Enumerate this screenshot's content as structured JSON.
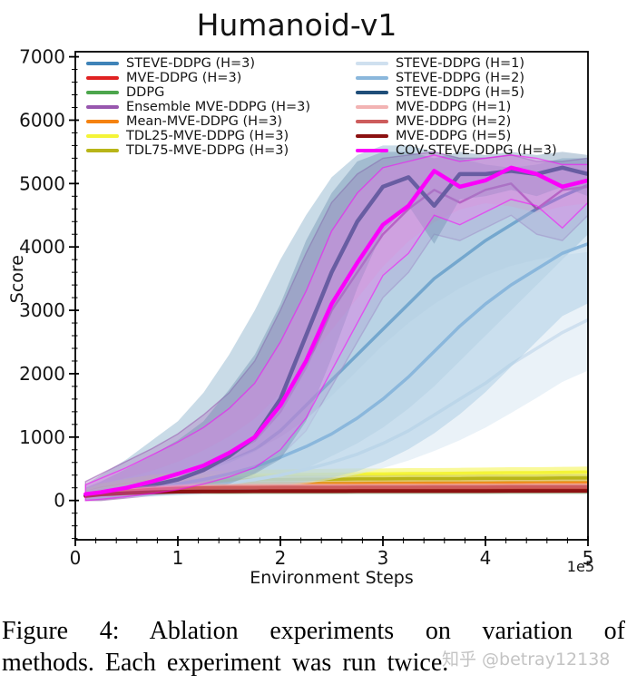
{
  "caption": {
    "line1": "Figure 4:  Ablation experiments on variation of",
    "line2": "methods. Each experiment was run twice.",
    "watermark": "知乎 @betray12138"
  },
  "legend": {
    "columns": [
      [
        {
          "label": "STEVE-DDPG (H=3)",
          "color": "#3f83b8"
        },
        {
          "label": "MVE-DDPG (H=3)",
          "color": "#e02222"
        },
        {
          "label": "DDPG",
          "color": "#4ca64c"
        },
        {
          "label": "Ensemble MVE-DDPG (H=3)",
          "color": "#9857ae"
        },
        {
          "label": "Mean-MVE-DDPG (H=3)",
          "color": "#f5820f"
        },
        {
          "label": "TDL25-MVE-DDPG (H=3)",
          "color": "#f4f438"
        },
        {
          "label": "TDL75-MVE-DDPG (H=3)",
          "color": "#b8b518"
        }
      ],
      [
        {
          "label": "STEVE-DDPG (H=1)",
          "color": "#cfe0ef"
        },
        {
          "label": "STEVE-DDPG (H=2)",
          "color": "#8ab7dc"
        },
        {
          "label": "STEVE-DDPG (H=5)",
          "color": "#1f4e79"
        },
        {
          "label": "MVE-DDPG (H=1)",
          "color": "#f2b3b3"
        },
        {
          "label": "MVE-DDPG (H=2)",
          "color": "#cd5c5c"
        },
        {
          "label": "MVE-DDPG (H=5)",
          "color": "#8c1111"
        },
        {
          "label": "COV-STEVE-DDPG (H=3)",
          "color": "#fb00fb"
        }
      ]
    ]
  },
  "chart_data": {
    "type": "line",
    "title": "Humanoid-v1",
    "xlabel": "Environment Steps",
    "ylabel": "Score",
    "x_offset_label": "1e5",
    "xlim": [
      0,
      5
    ],
    "ylim": [
      -620,
      7080
    ],
    "xticks": [
      0,
      1,
      2,
      3,
      4,
      5
    ],
    "xtick_labels": [
      "0",
      "1",
      "2",
      "3",
      "4",
      "5"
    ],
    "yticks": [
      0,
      1000,
      2000,
      3000,
      4000,
      5000,
      6000,
      7000
    ],
    "ytick_labels": [
      "0",
      "1000",
      "2000",
      "3000",
      "4000",
      "5000",
      "6000",
      "7000"
    ],
    "x_minor_step": 0.2,
    "y_minor_step": 200,
    "grid": false,
    "legend_position": "upper-left-two-columns",
    "x": [
      0.1,
      0.25,
      0.5,
      0.75,
      1.0,
      1.25,
      1.5,
      1.75,
      2.0,
      2.25,
      2.5,
      2.75,
      3.0,
      3.25,
      3.5,
      3.75,
      4.0,
      4.25,
      4.5,
      4.75,
      5.0
    ],
    "series": [
      {
        "id": "steve_h3",
        "name": "STEVE-DDPG (H=3)",
        "color": "#3f83b8",
        "lw": 3.5,
        "band_color": "#93b7cf",
        "band_opacity": 0.5,
        "y": [
          90,
          120,
          180,
          260,
          360,
          480,
          620,
          800,
          1100,
          1500,
          1900,
          2300,
          2700,
          3100,
          3500,
          3800,
          4100,
          4350,
          4600,
          4800,
          4975
        ],
        "band_upper": [
          250,
          400,
          650,
          950,
          1250,
          1700,
          2300,
          3000,
          3800,
          4500,
          5100,
          5450,
          5600,
          5600,
          5500,
          5400,
          5300,
          5250,
          5300,
          5400,
          5400
        ],
        "band_lower": [
          0,
          10,
          50,
          80,
          110,
          150,
          200,
          280,
          380,
          500,
          700,
          900,
          1150,
          1450,
          1800,
          2200,
          2600,
          3000,
          3400,
          3800,
          4200
        ]
      },
      {
        "id": "mve_h3",
        "name": "MVE-DDPG (H=3)",
        "color": "#e02222",
        "lw": 4,
        "band_color": "#e02222",
        "band_opacity": 0.25,
        "y": [
          80,
          110,
          140,
          160,
          172,
          178,
          180,
          182,
          182,
          184,
          184,
          185,
          185,
          185,
          186,
          186,
          186,
          188,
          188,
          188,
          188
        ],
        "band_upper": [
          130,
          160,
          190,
          205,
          215,
          220,
          222,
          224,
          224,
          226,
          226,
          227,
          227,
          227,
          228,
          228,
          228,
          230,
          230,
          230,
          230
        ],
        "band_lower": [
          30,
          60,
          90,
          115,
          128,
          135,
          138,
          140,
          140,
          142,
          142,
          143,
          143,
          143,
          144,
          144,
          144,
          146,
          146,
          146,
          146
        ]
      },
      {
        "id": "ddpg",
        "name": "DDPG",
        "color": "#4ca64c",
        "lw": 3.5,
        "band_color": "#4ca64c",
        "band_opacity": 0.25,
        "y": [
          75,
          100,
          120,
          130,
          135,
          138,
          138,
          140,
          140,
          140,
          140,
          142,
          142,
          142,
          143,
          143,
          143,
          144,
          144,
          145,
          145
        ],
        "band_upper": [
          120,
          145,
          165,
          175,
          180,
          183,
          183,
          185,
          185,
          185,
          185,
          187,
          187,
          187,
          188,
          188,
          188,
          189,
          189,
          190,
          190
        ],
        "band_lower": [
          30,
          55,
          75,
          85,
          90,
          93,
          93,
          95,
          95,
          95,
          95,
          97,
          97,
          97,
          98,
          98,
          98,
          99,
          99,
          100,
          100
        ]
      },
      {
        "id": "ensemble_mve_h3",
        "name": "Ensemble MVE-DDPG (H=3)",
        "color": "#9857ae",
        "lw": 2.5,
        "band_color": "#b07cc4",
        "band_opacity": 0.4,
        "band_edge": true,
        "y": [
          85,
          115,
          185,
          275,
          395,
          525,
          715,
          945,
          1400,
          2100,
          3000,
          3600,
          4200,
          4600,
          4900,
          4700,
          4900,
          5000,
          4600,
          4900,
          4950
        ],
        "band_upper": [
          300,
          420,
          620,
          820,
          1050,
          1350,
          1700,
          2200,
          3000,
          3900,
          4700,
          5150,
          5400,
          5450,
          5500,
          5400,
          5400,
          5450,
          5350,
          5350,
          5400
        ],
        "band_lower": [
          0,
          0,
          40,
          80,
          130,
          200,
          300,
          450,
          700,
          1100,
          1800,
          2500,
          3200,
          3600,
          4200,
          4100,
          4300,
          4500,
          4200,
          4100,
          4500
        ]
      },
      {
        "id": "mean_mve_h3",
        "name": "Mean-MVE-DDPG (H=3)",
        "color": "#f5820f",
        "lw": 3.5,
        "band_color": "#f5820f",
        "band_opacity": 0.3,
        "y": [
          90,
          140,
          190,
          230,
          250,
          260,
          265,
          265,
          270,
          270,
          270,
          270,
          272,
          272,
          275,
          275,
          275,
          278,
          278,
          280,
          280
        ],
        "band_upper": [
          145,
          195,
          245,
          285,
          305,
          315,
          320,
          320,
          325,
          325,
          325,
          325,
          327,
          327,
          330,
          330,
          330,
          333,
          333,
          335,
          335
        ],
        "band_lower": [
          35,
          85,
          135,
          175,
          195,
          205,
          210,
          210,
          215,
          215,
          215,
          215,
          217,
          217,
          220,
          220,
          220,
          223,
          223,
          225,
          225
        ]
      },
      {
        "id": "tdl25",
        "name": "TDL25-MVE-DDPG (H=3)",
        "color": "#f4f438",
        "lw": 3.5,
        "band_color": "#f4f438",
        "band_opacity": 0.5,
        "y": [
          100,
          180,
          260,
          320,
          360,
          380,
          390,
          400,
          405,
          410,
          415,
          420,
          420,
          425,
          425,
          430,
          435,
          440,
          440,
          445,
          450
        ],
        "band_upper": [
          185,
          265,
          345,
          405,
          445,
          465,
          475,
          485,
          490,
          495,
          500,
          505,
          505,
          510,
          510,
          515,
          520,
          525,
          525,
          530,
          535
        ],
        "band_lower": [
          15,
          95,
          175,
          235,
          275,
          295,
          305,
          315,
          320,
          325,
          330,
          335,
          335,
          340,
          340,
          345,
          350,
          355,
          355,
          360,
          365
        ]
      },
      {
        "id": "tdl75",
        "name": "TDL75-MVE-DDPG (H=3)",
        "color": "#b8b518",
        "lw": 3.5,
        "band_color": "#b8b518",
        "band_opacity": 0.4,
        "y": [
          95,
          160,
          220,
          270,
          300,
          315,
          325,
          330,
          330,
          335,
          335,
          340,
          340,
          345,
          345,
          345,
          350,
          350,
          350,
          355,
          355
        ],
        "band_upper": [
          155,
          220,
          280,
          330,
          360,
          375,
          385,
          390,
          390,
          395,
          395,
          400,
          400,
          405,
          405,
          405,
          410,
          410,
          410,
          415,
          415
        ],
        "band_lower": [
          35,
          100,
          160,
          210,
          240,
          255,
          265,
          270,
          270,
          275,
          275,
          280,
          280,
          285,
          285,
          285,
          290,
          290,
          290,
          295,
          295
        ]
      },
      {
        "id": "steve_h1",
        "name": "STEVE-DDPG (H=1)",
        "color": "#cfe0ef",
        "lw": 3.5,
        "band_color": "#d8e7f2",
        "band_opacity": 0.55,
        "y": [
          85,
          100,
          120,
          150,
          185,
          225,
          270,
          330,
          400,
          490,
          600,
          730,
          900,
          1100,
          1350,
          1600,
          1850,
          2150,
          2400,
          2650,
          2850
        ],
        "band_upper": [
          150,
          200,
          260,
          330,
          410,
          510,
          630,
          790,
          1000,
          1280,
          1650,
          2050,
          2450,
          2800,
          3100,
          3350,
          3550,
          3700,
          3800,
          3870,
          3920
        ],
        "band_lower": [
          20,
          30,
          45,
          60,
          80,
          100,
          130,
          170,
          215,
          265,
          330,
          410,
          510,
          630,
          780,
          950,
          1150,
          1380,
          1620,
          1870,
          2050
        ]
      },
      {
        "id": "steve_h2",
        "name": "STEVE-DDPG (H=2)",
        "color": "#8ab7dc",
        "lw": 3.5,
        "band_color": "#aacbe4",
        "band_opacity": 0.5,
        "y": [
          90,
          110,
          150,
          200,
          260,
          330,
          420,
          530,
          680,
          850,
          1050,
          1300,
          1600,
          1950,
          2350,
          2750,
          3100,
          3400,
          3650,
          3900,
          4050
        ],
        "band_upper": [
          200,
          260,
          360,
          470,
          610,
          790,
          1010,
          1290,
          1690,
          2190,
          2690,
          3190,
          3690,
          4090,
          4390,
          4590,
          4690,
          4640,
          4540,
          4640,
          4690
        ],
        "band_lower": [
          20,
          30,
          50,
          70,
          90,
          110,
          140,
          180,
          230,
          290,
          360,
          460,
          610,
          810,
          1060,
          1360,
          1710,
          2110,
          2510,
          2910,
          3110
        ]
      },
      {
        "id": "steve_h5",
        "name": "STEVE-DDPG (H=5)",
        "color": "#1f4e79",
        "lw": 4.5,
        "band_color": "#6b8fb0",
        "band_opacity": 0.4,
        "y": [
          80,
          110,
          170,
          240,
          330,
          480,
          700,
          1000,
          1600,
          2600,
          3600,
          4400,
          4950,
          5100,
          4650,
          5150,
          5150,
          5200,
          5150,
          5250,
          5150
        ],
        "band_upper": [
          200,
          300,
          500,
          720,
          950,
          1250,
          1750,
          2300,
          3100,
          4100,
          4850,
          5350,
          5500,
          5500,
          5400,
          5500,
          5450,
          5500,
          5450,
          5500,
          5450
        ],
        "band_lower": [
          0,
          10,
          50,
          90,
          120,
          170,
          260,
          420,
          650,
          1250,
          2250,
          3350,
          4250,
          4650,
          4050,
          4750,
          4800,
          4900,
          4800,
          4950,
          4800
        ]
      },
      {
        "id": "mve_h1",
        "name": "MVE-DDPG (H=1)",
        "color": "#f2b3b3",
        "lw": 3.5,
        "band_color": "#f2b3b3",
        "band_opacity": 0.4,
        "y": [
          85,
          120,
          160,
          190,
          210,
          218,
          222,
          225,
          225,
          228,
          228,
          228,
          230,
          230,
          230,
          232,
          232,
          232,
          235,
          235,
          235
        ],
        "band_upper": [
          130,
          165,
          205,
          235,
          255,
          263,
          267,
          270,
          270,
          273,
          273,
          273,
          275,
          275,
          275,
          277,
          277,
          277,
          280,
          280,
          280
        ],
        "band_lower": [
          40,
          75,
          115,
          145,
          165,
          173,
          177,
          180,
          180,
          183,
          183,
          183,
          185,
          185,
          185,
          187,
          187,
          187,
          190,
          190,
          190
        ]
      },
      {
        "id": "mve_h2",
        "name": "MVE-DDPG (H=2)",
        "color": "#cd5c5c",
        "lw": 3.5,
        "band_color": "#cd5c5c",
        "band_opacity": 0.35,
        "y": [
          85,
          115,
          150,
          175,
          192,
          200,
          205,
          205,
          208,
          208,
          208,
          210,
          210,
          210,
          212,
          212,
          212,
          215,
          215,
          215,
          215
        ],
        "band_upper": [
          127,
          157,
          192,
          217,
          234,
          242,
          247,
          247,
          250,
          250,
          250,
          252,
          252,
          252,
          254,
          254,
          254,
          257,
          257,
          257,
          257
        ],
        "band_lower": [
          43,
          73,
          108,
          133,
          150,
          158,
          163,
          163,
          166,
          166,
          166,
          168,
          168,
          168,
          170,
          170,
          170,
          173,
          173,
          173,
          173
        ]
      },
      {
        "id": "mve_h5",
        "name": "MVE-DDPG (H=5)",
        "color": "#8c1111",
        "lw": 4,
        "band_color": "#8c1111",
        "band_opacity": 0.35,
        "y": [
          70,
          95,
          115,
          130,
          138,
          142,
          144,
          145,
          145,
          146,
          146,
          147,
          147,
          147,
          148,
          148,
          148,
          149,
          149,
          150,
          150
        ],
        "band_upper": [
          102,
          127,
          147,
          162,
          170,
          174,
          176,
          177,
          177,
          178,
          178,
          179,
          179,
          179,
          180,
          180,
          180,
          181,
          181,
          182,
          182
        ],
        "band_lower": [
          38,
          63,
          83,
          98,
          106,
          110,
          112,
          113,
          113,
          114,
          114,
          115,
          115,
          115,
          116,
          116,
          116,
          117,
          117,
          118,
          118
        ]
      },
      {
        "id": "cov_steve_h3",
        "name": "COV-STEVE-DDPG (H=3)",
        "color": "#fb00fb",
        "lw": 4.5,
        "band_color": "#f07af0",
        "band_opacity": 0.35,
        "band_edge": true,
        "y": [
          100,
          130,
          200,
          300,
          420,
          550,
          750,
          1000,
          1500,
          2200,
          3100,
          3750,
          4350,
          4650,
          5200,
          4950,
          5050,
          5250,
          5150,
          4950,
          5050
        ],
        "band_upper": [
          250,
          350,
          520,
          720,
          920,
          1150,
          1450,
          1850,
          2500,
          3300,
          4250,
          4850,
          5250,
          5350,
          5450,
          5350,
          5400,
          5450,
          5400,
          5300,
          5300
        ],
        "band_lower": [
          0,
          20,
          60,
          110,
          170,
          260,
          370,
          520,
          800,
          1300,
          2050,
          2800,
          3550,
          3900,
          4500,
          4350,
          4550,
          4750,
          4650,
          4300,
          4700
        ]
      }
    ]
  }
}
